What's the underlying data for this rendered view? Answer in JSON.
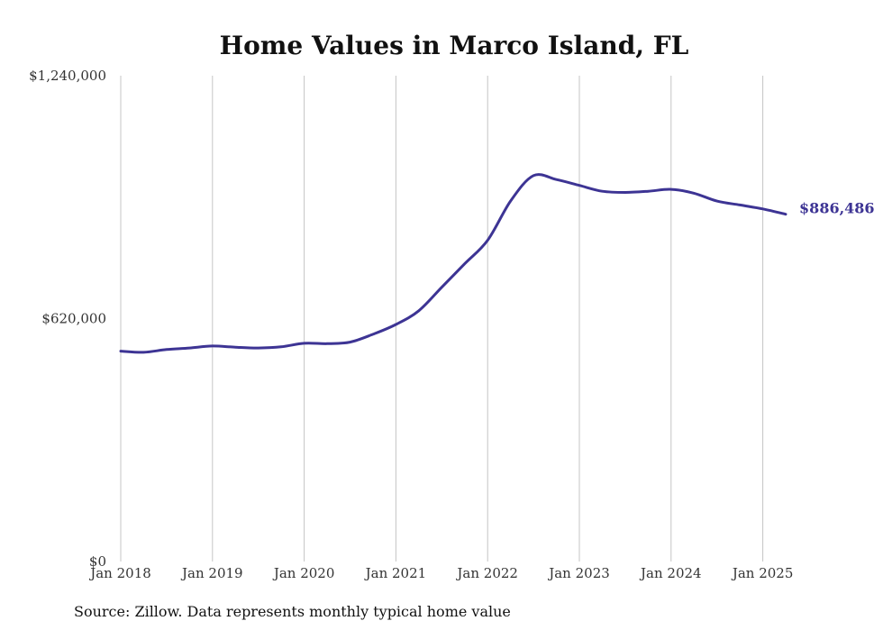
{
  "chart_data": {
    "type": "line",
    "title": "Home Values in Marco Island, FL",
    "source": "Source: Zillow. Data represents monthly typical home value",
    "line_color": "#3d3494",
    "grid": "vertical",
    "ylim": [
      0,
      1240000
    ],
    "y_ticks": [
      {
        "value": 0,
        "label": "$0"
      },
      {
        "value": 620000,
        "label": "$620,000"
      },
      {
        "value": 1240000,
        "label": "$1,240,000"
      }
    ],
    "x_ticks": [
      "Jan 2018",
      "Jan 2019",
      "Jan 2020",
      "Jan 2021",
      "Jan 2022",
      "Jan 2023",
      "Jan 2024",
      "Jan 2025"
    ],
    "end_label": "$886,486",
    "series": [
      {
        "x": [
          "2018-01",
          "2018-04",
          "2018-07",
          "2018-10",
          "2019-01",
          "2019-04",
          "2019-07",
          "2019-10",
          "2020-01",
          "2020-04",
          "2020-07",
          "2020-10",
          "2021-01",
          "2021-04",
          "2021-07",
          "2021-10",
          "2022-01",
          "2022-04",
          "2022-07",
          "2022-10",
          "2023-01",
          "2023-04",
          "2023-07",
          "2023-10",
          "2024-01",
          "2024-04",
          "2024-07",
          "2024-10",
          "2025-01",
          "2025-04"
        ],
        "values": [
          537000,
          534000,
          541000,
          545000,
          550000,
          547000,
          545000,
          548000,
          557000,
          556000,
          560000,
          580000,
          605000,
          640000,
          700000,
          760000,
          820000,
          920000,
          985000,
          975000,
          960000,
          945000,
          942000,
          945000,
          950000,
          940000,
          920000,
          910000,
          900000,
          886486
        ]
      }
    ]
  }
}
